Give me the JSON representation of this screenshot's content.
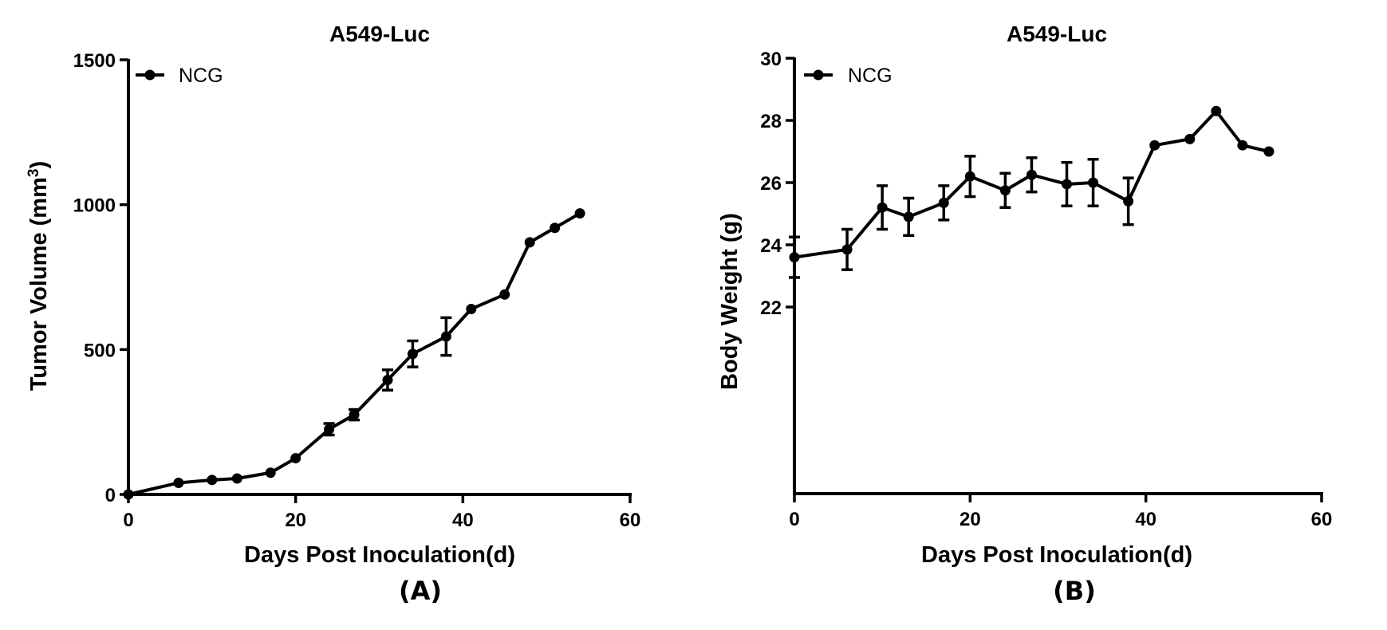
{
  "chart_data": [
    {
      "type": "line",
      "panel_label": "(A)",
      "title": "A549-Luc",
      "xlabel": "Days Post Inoculation(d)",
      "ylabel_main": "Tumor Volume (mm",
      "ylabel_sup": "3",
      "ylabel_close": ")",
      "xlim": [
        0,
        60
      ],
      "ylim": [
        0,
        1500
      ],
      "xticks": [
        0,
        20,
        40,
        60
      ],
      "yticks": [
        0,
        500,
        1000,
        1500
      ],
      "legend": "top-left",
      "series": [
        {
          "name": "NCG",
          "x": [
            0,
            6,
            10,
            13,
            17,
            20,
            24,
            27,
            31,
            34,
            38,
            41,
            45,
            48,
            51,
            54
          ],
          "y": [
            0,
            40,
            50,
            55,
            75,
            125,
            225,
            275,
            395,
            485,
            545,
            640,
            690,
            870,
            920,
            970
          ],
          "err": [
            0,
            0,
            0,
            0,
            0,
            0,
            20,
            18,
            35,
            45,
            65,
            0,
            0,
            0,
            0,
            0
          ]
        }
      ]
    },
    {
      "type": "line",
      "panel_label": "(B)",
      "title": "A549-Luc",
      "xlabel": "Days Post Inoculation(d)",
      "ylabel_main": "Body Weight (g)",
      "ylabel_sup": "",
      "ylabel_close": "",
      "xlim": [
        0,
        60
      ],
      "ylim": [
        16,
        30
      ],
      "xticks": [
        0,
        20,
        40,
        60
      ],
      "yticks": [
        22,
        24,
        26,
        28,
        30
      ],
      "legend": "top-left",
      "series": [
        {
          "name": "NCG",
          "x": [
            0,
            6,
            10,
            13,
            17,
            20,
            24,
            27,
            31,
            34,
            38,
            41,
            45,
            48,
            51,
            54
          ],
          "y": [
            23.6,
            23.85,
            25.2,
            24.9,
            25.35,
            26.2,
            25.75,
            26.25,
            25.95,
            26.0,
            25.4,
            27.2,
            27.4,
            28.3,
            27.2,
            27.0
          ],
          "err": [
            0.65,
            0.65,
            0.7,
            0.6,
            0.55,
            0.65,
            0.55,
            0.55,
            0.7,
            0.75,
            0.75,
            0,
            0,
            0,
            0,
            0
          ]
        }
      ]
    }
  ]
}
